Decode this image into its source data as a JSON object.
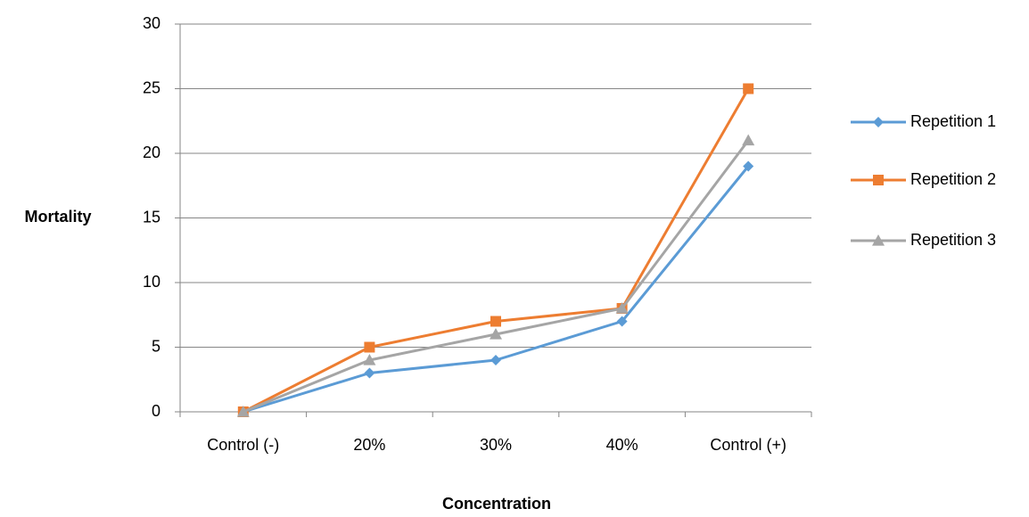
{
  "chart_data": {
    "type": "line",
    "categories": [
      "Control (-)",
      "20%",
      "30%",
      "40%",
      "Control (+)"
    ],
    "series": [
      {
        "name": "Repetition 1",
        "values": [
          0,
          3,
          4,
          7,
          19
        ],
        "color": "#5B9BD5",
        "marker": "diamond"
      },
      {
        "name": "Repetition 2",
        "values": [
          0,
          5,
          7,
          8,
          25
        ],
        "color": "#ED7D31",
        "marker": "square"
      },
      {
        "name": "Repetition 3",
        "values": [
          0,
          4,
          6,
          8,
          21
        ],
        "color": "#A5A5A5",
        "marker": "triangle"
      }
    ],
    "xlabel": "Concentration",
    "ylabel": "Mortality",
    "ylim": [
      0,
      30
    ],
    "yticks": [
      0,
      5,
      10,
      15,
      20,
      25,
      30
    ],
    "grid": "horizontal",
    "legend_position": "right"
  }
}
